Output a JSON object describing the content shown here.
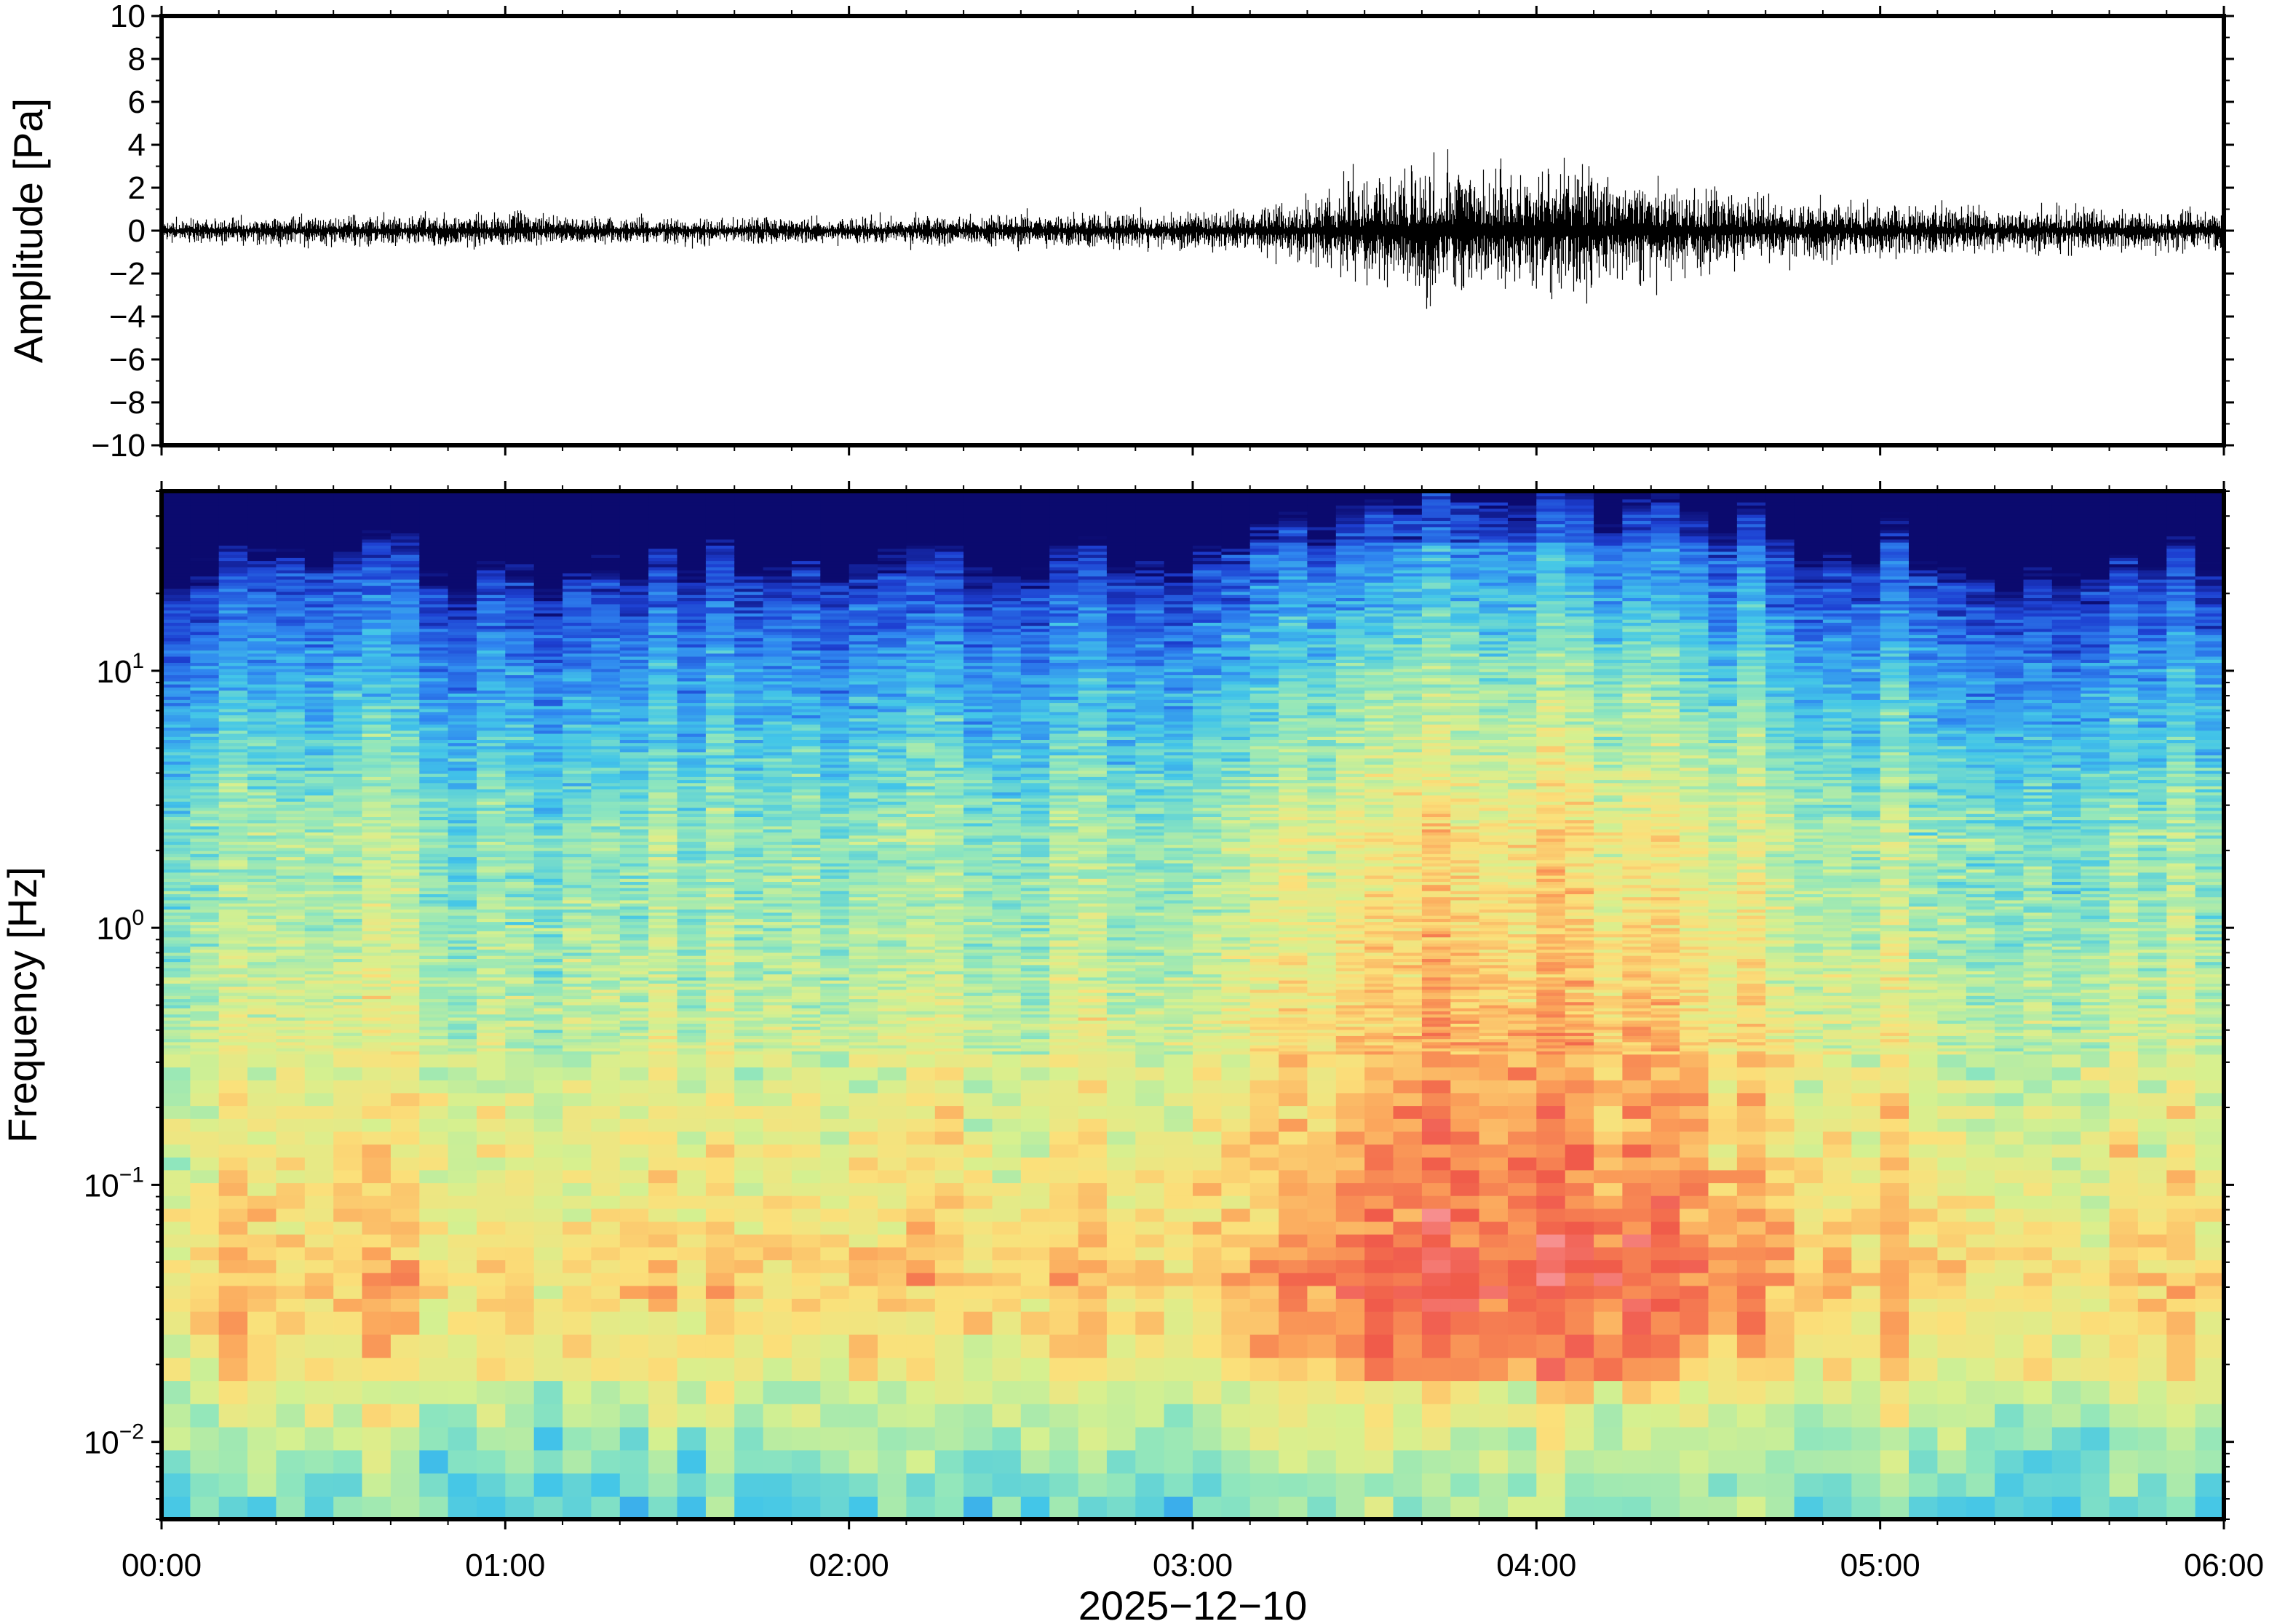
{
  "chart_data": [
    {
      "type": "line",
      "panel": "waveform",
      "ylabel": "Amplitude [Pa]",
      "ylim": [
        -10,
        10
      ],
      "yticks": [
        10,
        8,
        6,
        4,
        2,
        0,
        -2,
        -4,
        -6,
        -8,
        -10
      ],
      "ytick_labels": [
        "10",
        "8",
        "6",
        "4",
        "2",
        "0",
        "−2",
        "−4",
        "−6",
        "−8",
        "−10"
      ],
      "xlim": [
        "00:00",
        "06:00"
      ],
      "grid": false,
      "envelope": {
        "time_hours": [
          0.0,
          0.5,
          1.0,
          1.5,
          2.0,
          2.5,
          3.0,
          3.25,
          3.4,
          3.5,
          3.75,
          4.0,
          4.25,
          4.5,
          4.75,
          5.0,
          5.5,
          6.0
        ],
        "amplitude_pa": [
          0.25,
          0.35,
          0.4,
          0.3,
          0.3,
          0.4,
          0.45,
          0.55,
          0.9,
          1.2,
          1.5,
          1.5,
          1.3,
          0.9,
          0.7,
          0.6,
          0.5,
          0.5
        ]
      },
      "peaks": [
        {
          "time_hours": 4.0,
          "amplitude_pa": -2.7
        },
        {
          "time_hours": 4.3,
          "amplitude_pa": 1.9
        },
        {
          "time_hours": 4.3,
          "amplitude_pa": -2.5
        },
        {
          "time_hours": 3.75,
          "amplitude_pa": 1.7
        }
      ]
    },
    {
      "type": "heatmap",
      "panel": "spectrogram",
      "ylabel": "Frequency [Hz]",
      "yscale": "log",
      "ylim_hz": [
        0.005,
        50
      ],
      "ytick_labels": [
        {
          "value": 10,
          "base": "10",
          "exp": "1"
        },
        {
          "value": 1,
          "base": "10",
          "exp": "0"
        },
        {
          "value": 0.1,
          "base": "10",
          "exp": "−1"
        },
        {
          "value": 0.01,
          "base": "10",
          "exp": "−2"
        }
      ],
      "xlabel": "2025−12−10",
      "xlim": [
        "00:00",
        "06:00"
      ],
      "xtick_labels": [
        "00:00",
        "01:00",
        "02:00",
        "03:00",
        "04:00",
        "05:00",
        "06:00"
      ],
      "colormap": [
        "#0b0a6e",
        "#1d3fd1",
        "#2f86f0",
        "#43c6e8",
        "#8fe6bd",
        "#d6f08f",
        "#fbe07a",
        "#fba35a",
        "#f05a4a",
        "#f79090"
      ],
      "grid": false
    }
  ]
}
